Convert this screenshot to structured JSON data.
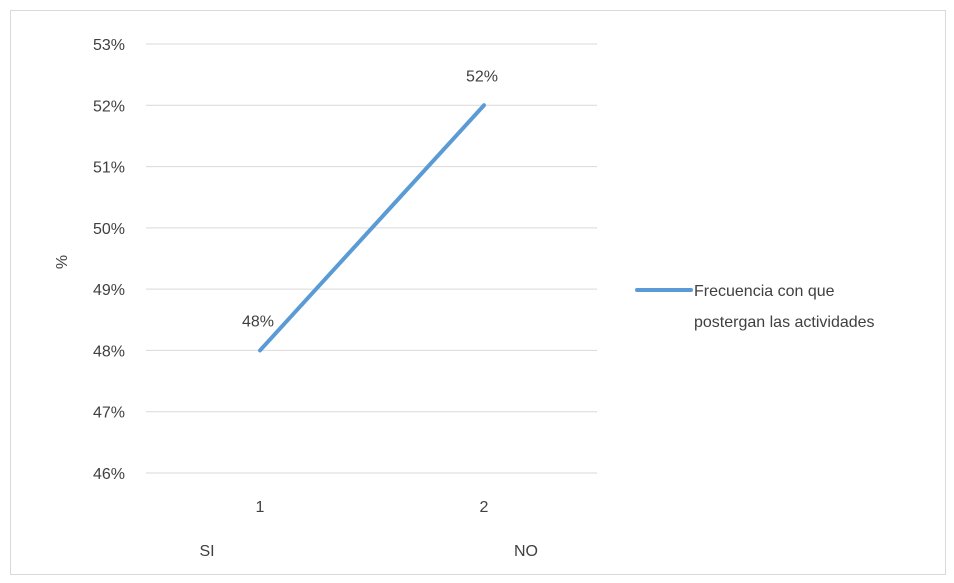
{
  "chart_data": {
    "type": "line",
    "x": [
      "1",
      "2"
    ],
    "category_labels": [
      "SI",
      "NO"
    ],
    "series": [
      {
        "name": "Frecuencia con que postergan las actividades",
        "values": [
          0.48,
          0.52
        ],
        "color": "#5b9bd5"
      }
    ],
    "data_labels": [
      "48%",
      "52%"
    ],
    "y_ticks": [
      0.46,
      0.47,
      0.48,
      0.49,
      0.5,
      0.51,
      0.52,
      0.53
    ],
    "y_tick_labels": [
      "46%",
      "47%",
      "48%",
      "49%",
      "50%",
      "51%",
      "52%",
      "53%"
    ],
    "ylim": [
      0.46,
      0.53
    ],
    "ylabel": "%",
    "xlabel": "",
    "grid": true,
    "legend_position": "right",
    "legend_lines": [
      "Frecuencia con que",
      "postergan las actividades"
    ],
    "gridline_color": "#d9d9d9"
  }
}
